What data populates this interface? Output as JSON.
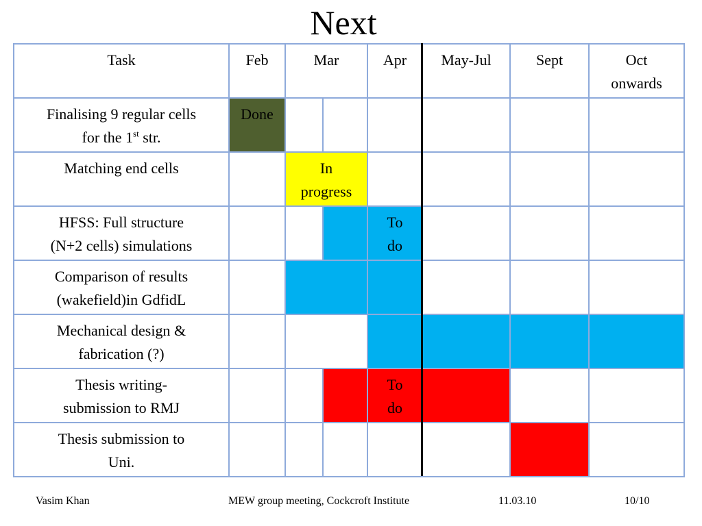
{
  "title": "Next",
  "table": {
    "headers": [
      "Task",
      "Feb",
      "Mar",
      "Apr",
      "May-Jul",
      "Sept",
      "Oct onwards"
    ],
    "header_oct_line1": "Oct",
    "header_oct_line2": "onwards",
    "rows": [
      {
        "task_line1": "Finalising 9 regular cells",
        "task_line2_pre": "for the 1",
        "task_line2_sup": "st",
        "task_line2_post": " str.",
        "status": "Done"
      },
      {
        "task_line1": "Matching end cells",
        "status_line1": "In",
        "status_line2": "progress"
      },
      {
        "task_line1": "HFSS:  Full structure",
        "task_line2": "(N+2 cells) simulations",
        "status_line1": "To",
        "status_line2": "do"
      },
      {
        "task_line1": "Comparison of results",
        "task_line2": "(wakefield)in GdfidL"
      },
      {
        "task_line1": "Mechanical design &",
        "task_line2": "fabrication (?)"
      },
      {
        "task_line1": "Thesis writing-",
        "task_line2": "submission to RMJ",
        "status_line1": "To",
        "status_line2": "do"
      },
      {
        "task_line1": "Thesis submission to",
        "task_line2": "Uni."
      }
    ],
    "colors": {
      "done": "#4f5f2f",
      "in_progress": "#ffff00",
      "to_do": "#00b0f0",
      "thesis": "#ff0000",
      "border": "#8eaadb"
    }
  },
  "footer": {
    "author": "Vasim Khan",
    "event": "MEW group meeting, Cockcroft Institute",
    "date": "11.03.10",
    "page": "10/10"
  }
}
